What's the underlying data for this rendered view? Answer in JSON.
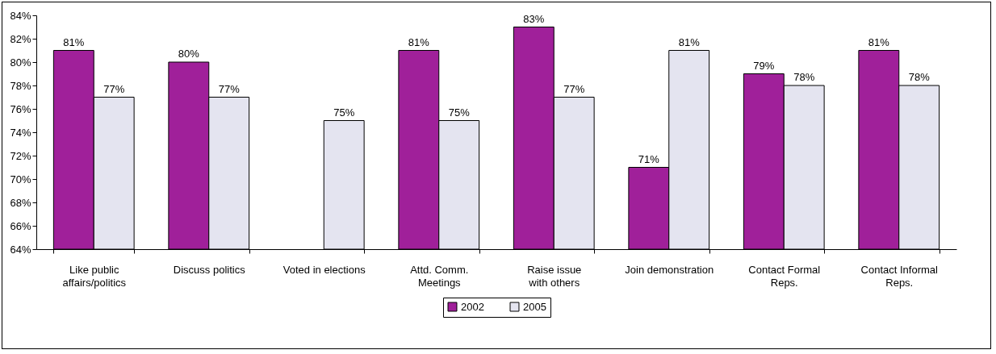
{
  "chart_data": {
    "type": "bar",
    "categories": [
      "Like public affairs/politics",
      "Discuss politics",
      "Voted in elections",
      "Attd. Comm. Meetings",
      "Raise issue with others",
      "Join demonstration",
      "Contact Formal Reps.",
      "Contact Informal Reps."
    ],
    "series": [
      {
        "name": "2002",
        "color": "#a0209a",
        "values": [
          81,
          80,
          null,
          81,
          83,
          71,
          79,
          81
        ],
        "value_labels": [
          "81%",
          "80%",
          null,
          "81%",
          "83%",
          "71%",
          "79%",
          "81%"
        ]
      },
      {
        "name": "2005",
        "color": "#e4e4f0",
        "values": [
          77,
          77,
          75,
          75,
          77,
          81,
          78,
          78
        ],
        "value_labels": [
          "77%",
          "77%",
          "75%",
          "75%",
          "77%",
          "81%",
          "78%",
          "78%"
        ]
      }
    ],
    "ylim": [
      64,
      84
    ],
    "yticks": [
      {
        "value": 64,
        "label": "64%"
      },
      {
        "value": 66,
        "label": "66%"
      },
      {
        "value": 68,
        "label": "68%"
      },
      {
        "value": 70,
        "label": "70%"
      },
      {
        "value": 72,
        "label": "72%"
      },
      {
        "value": 74,
        "label": "74%"
      },
      {
        "value": 76,
        "label": "76%"
      },
      {
        "value": 78,
        "label": "78%"
      },
      {
        "value": 80,
        "label": "80%"
      },
      {
        "value": 82,
        "label": "82%"
      },
      {
        "value": 84,
        "label": "84%"
      }
    ],
    "grid": false,
    "legend": "bottom"
  }
}
